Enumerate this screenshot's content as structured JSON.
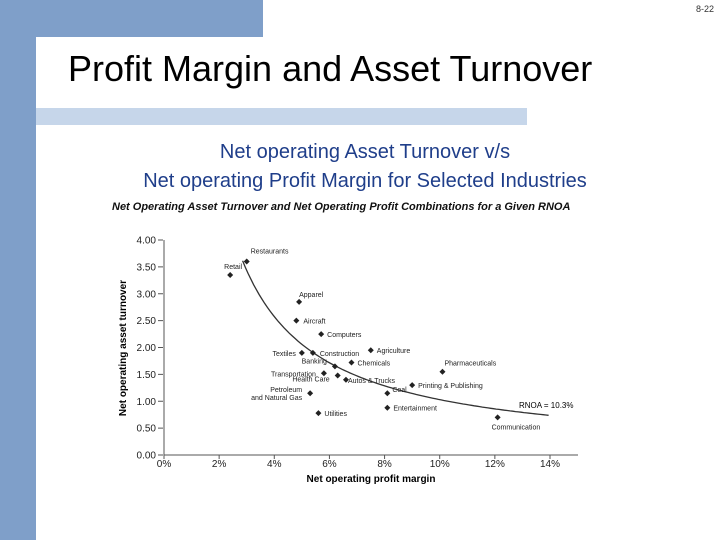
{
  "slide": {
    "number": "8-22",
    "title": "Profit Margin and Asset Turnover",
    "subtitle_line1": "Net operating Asset Turnover v/s",
    "subtitle_line2": "Net operating Profit Margin for Selected Industries"
  },
  "colors": {
    "accent_bar": "#7f9fc9",
    "light_bar": "#c6d6ea",
    "subtitle": "#1f3e8a"
  },
  "chart_data": {
    "type": "scatter",
    "title": "Net Operating Asset Turnover and Net Operating Profit Combinations for a Given RNOA",
    "xlabel": "Net operating profit margin",
    "ylabel": "Net operating asset turnover",
    "xlim": [
      0,
      14
    ],
    "ylim": [
      0,
      4
    ],
    "x_ticks": [
      "0%",
      "2%",
      "4%",
      "6%",
      "8%",
      "10%",
      "12%",
      "14%"
    ],
    "y_ticks": [
      "0.00",
      "0.50",
      "1.00",
      "1.50",
      "2.00",
      "2.50",
      "3.00",
      "3.50",
      "4.00"
    ],
    "grid": false,
    "points": [
      {
        "label": "Restaurants",
        "x": 3.0,
        "y": 3.6
      },
      {
        "label": "Retail",
        "x": 2.4,
        "y": 3.35
      },
      {
        "label": "Apparel",
        "x": 4.9,
        "y": 2.85
      },
      {
        "label": "Aircraft",
        "x": 4.8,
        "y": 2.5
      },
      {
        "label": "Computers",
        "x": 5.7,
        "y": 2.25
      },
      {
        "label": "Agriculture",
        "x": 7.5,
        "y": 1.95
      },
      {
        "label": "Textiles",
        "x": 5.0,
        "y": 1.9
      },
      {
        "label": "Construction",
        "x": 5.4,
        "y": 1.9
      },
      {
        "label": "Banking",
        "x": 6.2,
        "y": 1.65
      },
      {
        "label": "Chemicals",
        "x": 6.8,
        "y": 1.72
      },
      {
        "label": "Transportation",
        "x": 5.8,
        "y": 1.52
      },
      {
        "label": "Health Care",
        "x": 6.3,
        "y": 1.48
      },
      {
        "label": "Autos & Trucks",
        "x": 6.6,
        "y": 1.4
      },
      {
        "label": "Pharmaceuticals",
        "x": 10.1,
        "y": 1.55
      },
      {
        "label": "Printing & Publishing",
        "x": 9.0,
        "y": 1.3
      },
      {
        "label": "Petroleum and Natural Gas",
        "x": 5.3,
        "y": 1.15
      },
      {
        "label": "Coal",
        "x": 8.1,
        "y": 1.15
      },
      {
        "label": "Entertainment",
        "x": 8.1,
        "y": 0.88
      },
      {
        "label": "Utilities",
        "x": 5.6,
        "y": 0.78
      },
      {
        "label": "Communication",
        "x": 12.1,
        "y": 0.7
      }
    ],
    "curve": {
      "label": "RNOA = 10.3%",
      "rnoa": 10.3
    }
  }
}
